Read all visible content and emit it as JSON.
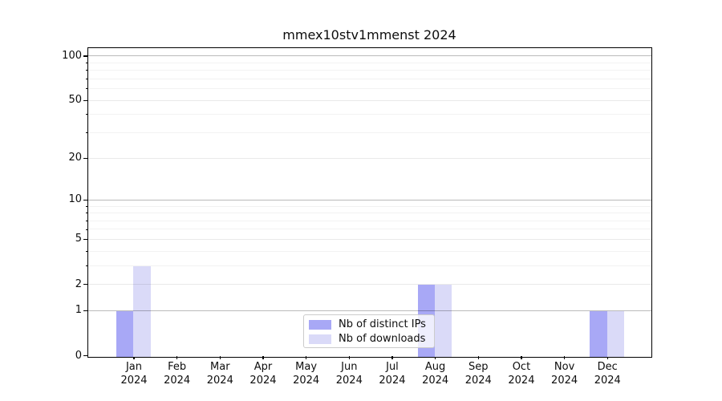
{
  "chart": {
    "title": "mmex10stv1mmenst 2024"
  },
  "chart_data": {
    "type": "bar",
    "title": "mmex10stv1mmenst 2024",
    "x_tick_months": [
      "Jan",
      "Feb",
      "Mar",
      "Apr",
      "May",
      "Jun",
      "Jul",
      "Aug",
      "Sep",
      "Oct",
      "Nov",
      "Dec"
    ],
    "x_tick_year": "2024",
    "categories": [
      "Jan 2024",
      "Feb 2024",
      "Mar 2024",
      "Apr 2024",
      "May 2024",
      "Jun 2024",
      "Jul 2024",
      "Aug 2024",
      "Sep 2024",
      "Oct 2024",
      "Nov 2024",
      "Dec 2024"
    ],
    "series": [
      {
        "name": "Nb of distinct IPs",
        "color": "#a8a8f6",
        "values": [
          1,
          0,
          0,
          0,
          0,
          0,
          0,
          2,
          0,
          0,
          0,
          1
        ]
      },
      {
        "name": "Nb of downloads",
        "color": "#dadaf8",
        "values": [
          3,
          0,
          0,
          0,
          0,
          0,
          0,
          2,
          0,
          0,
          0,
          1
        ]
      }
    ],
    "xlabel": "",
    "ylabel": "",
    "yscale": "log1p",
    "ylim": [
      0,
      113
    ],
    "y_tick_labels": [
      0,
      1,
      2,
      5,
      10,
      20,
      50,
      100
    ],
    "grid": true,
    "grid_major_values": [
      1,
      10,
      100
    ],
    "grid_sub_values": [
      2,
      5,
      20,
      50
    ],
    "grid_minor_values": [
      3,
      4,
      6,
      7,
      8,
      9,
      30,
      40,
      60,
      70,
      80,
      90
    ],
    "legend": {
      "position": "lower center inside",
      "labels": [
        "Nb of distinct IPs",
        "Nb of downloads"
      ]
    }
  }
}
